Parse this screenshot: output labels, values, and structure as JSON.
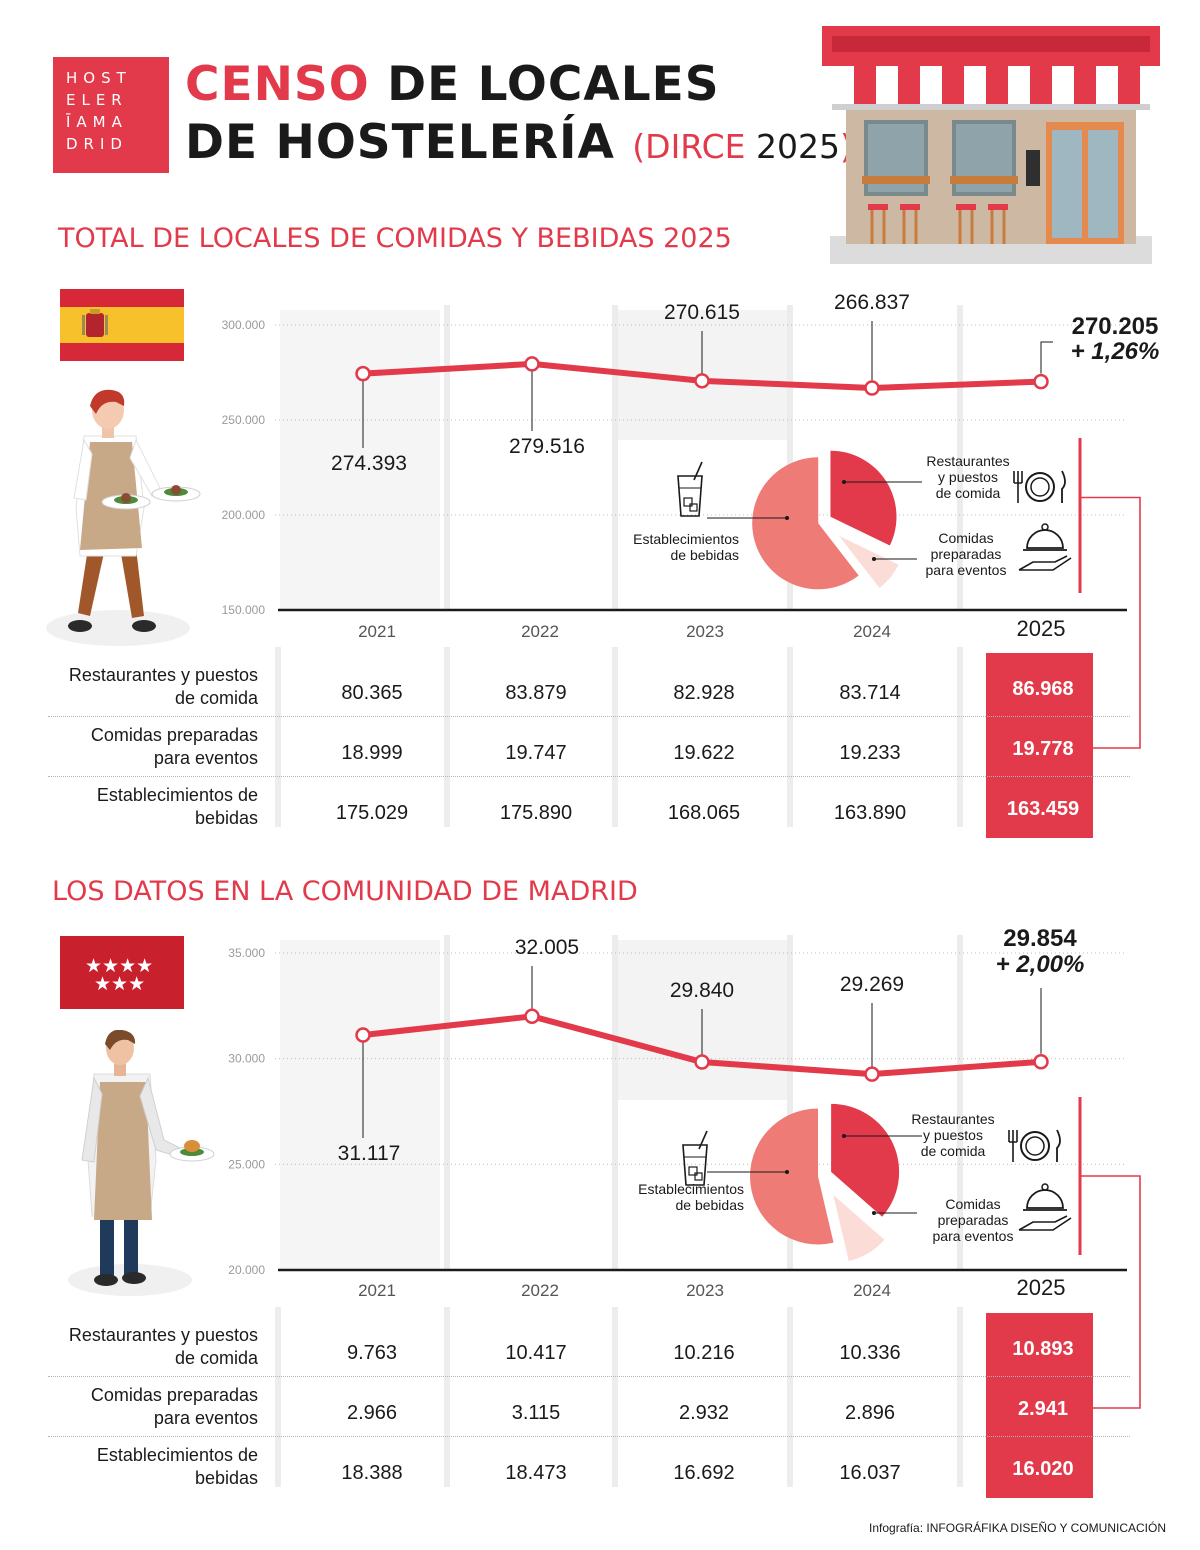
{
  "logo": {
    "lines": [
      "HOST",
      "ELER",
      "ĪAMA",
      "DRID"
    ]
  },
  "header": {
    "title_red": "CENSO",
    "title_rest": " DE LOCALES",
    "title_line2": "DE HOSTELERÍA",
    "subtitle_open": "(DIRCE",
    "subtitle_year": "2025",
    "subtitle_close": ")"
  },
  "colors": {
    "accent": "#e23a4a",
    "line": "#e23a4a",
    "pie_drinks": "#ee7b75",
    "pie_food": "#e23a4a",
    "pie_events": "#fbdcd6"
  },
  "sections": [
    {
      "title": "TOTAL DE LOCALES DE COMIDAS Y BEBIDAS 2025",
      "flag_icon": "spain-flag-icon",
      "person_icon": "waitress-icon",
      "chart_data": {
        "type": "line",
        "x": [
          "2021",
          "2022",
          "2023",
          "2024",
          "2025"
        ],
        "series": [
          {
            "values": [
              274393,
              279516,
              270615,
              266837,
              270205
            ]
          }
        ],
        "value_labels": [
          "274.393",
          "279.516",
          "270.615",
          "266.837",
          "270.205"
        ],
        "highlight_change": "+ 1,26%",
        "yticks": [
          "300.000",
          "250.000",
          "200.000",
          "150.000"
        ],
        "ytick_values": [
          300000,
          250000,
          200000,
          150000
        ],
        "ylim": [
          150000,
          300000
        ]
      },
      "pie": {
        "labels": {
          "food": "Restaurantes\ny puestos\nde comida",
          "events": "Comidas\npreparadas\npara eventos",
          "drinks": "Establecimientos\nde bebidas"
        },
        "values": {
          "food": 86968,
          "events": 19778,
          "drinks": 163459
        }
      },
      "table": {
        "years": [
          "2021",
          "2022",
          "2023",
          "2024",
          "2025"
        ],
        "rows": [
          {
            "label": [
              "Restaurantes y puestos",
              "de comida"
            ],
            "values": [
              "80.365",
              "83.879",
              "82.928",
              "83.714",
              "86.968"
            ]
          },
          {
            "label": [
              "Comidas preparadas",
              "para eventos"
            ],
            "values": [
              "18.999",
              "19.747",
              "19.622",
              "19.233",
              "19.778"
            ]
          },
          {
            "label": [
              "Establecimientos de",
              "bebidas"
            ],
            "values": [
              "175.029",
              "175.890",
              "168.065",
              "163.890",
              "163.459"
            ]
          }
        ]
      }
    },
    {
      "title": "LOS DATOS EN LA COMUNIDAD DE MADRID",
      "flag_icon": "madrid-flag-icon",
      "person_icon": "waiter-icon",
      "chart_data": {
        "type": "line",
        "x": [
          "2021",
          "2022",
          "2023",
          "2024",
          "2025"
        ],
        "series": [
          {
            "values": [
              31117,
              32005,
              29840,
              29269,
              29854
            ]
          }
        ],
        "value_labels": [
          "31.117",
          "32.005",
          "29.840",
          "29.269",
          "29.854"
        ],
        "highlight_change": "+ 2,00%",
        "yticks": [
          "35.000",
          "30.000",
          "25.000",
          "20.000"
        ],
        "ytick_values": [
          35000,
          30000,
          25000,
          20000
        ],
        "ylim": [
          20000,
          35000
        ]
      },
      "pie": {
        "labels": {
          "food": "Restaurantes\ny puestos\nde comida",
          "events": "Comidas\npreparadas\npara eventos",
          "drinks": "Establecimientos\nde bebidas"
        },
        "values": {
          "food": 10893,
          "events": 2941,
          "drinks": 16020
        }
      },
      "table": {
        "years": [
          "2021",
          "2022",
          "2023",
          "2024",
          "2025"
        ],
        "rows": [
          {
            "label": [
              "Restaurantes y puestos",
              "de comida"
            ],
            "values": [
              "9.763",
              "10.417",
              "10.216",
              "10.336",
              "10.893"
            ]
          },
          {
            "label": [
              "Comidas preparadas",
              "para eventos"
            ],
            "values": [
              "2.966",
              "3.115",
              "2.932",
              "2.896",
              "2.941"
            ]
          },
          {
            "label": [
              "Establecimientos de",
              "bebidas"
            ],
            "values": [
              "18.388",
              "18.473",
              "16.692",
              "16.037",
              "16.020"
            ]
          }
        ]
      }
    }
  ],
  "footer": {
    "prefix": "Infografía: ",
    "credit": "INFOGRÁFIKA DISEÑO Y COMUNICACIÓN"
  }
}
